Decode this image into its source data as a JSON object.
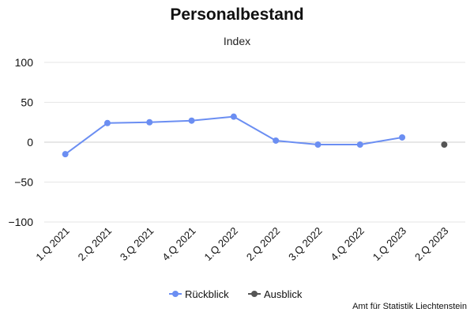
{
  "chart_data": {
    "type": "line",
    "title": "Personalbestand",
    "subtitle": "Index",
    "xlabel": "",
    "ylabel": "",
    "ylim": [
      -100,
      100
    ],
    "yticks": [
      100,
      50,
      0,
      -50,
      -100
    ],
    "categories": [
      "1.Q 2021",
      "2.Q 2021",
      "3.Q 2021",
      "4.Q 2021",
      "1.Q 2022",
      "2.Q 2022",
      "3.Q 2022",
      "4.Q 2022",
      "1.Q 2023",
      "2.Q 2023"
    ],
    "series": [
      {
        "name": "Rückblick",
        "color": "#6b8ef2",
        "values": [
          -15,
          24,
          25,
          27,
          32,
          2,
          -3,
          -3,
          6,
          null
        ]
      },
      {
        "name": "Ausblick",
        "color": "#555555",
        "values": [
          null,
          null,
          null,
          null,
          null,
          null,
          null,
          null,
          null,
          -3
        ]
      }
    ],
    "grid": true,
    "legend_position": "bottom-center"
  },
  "source": "Amt für Statistik Liechtenstein"
}
